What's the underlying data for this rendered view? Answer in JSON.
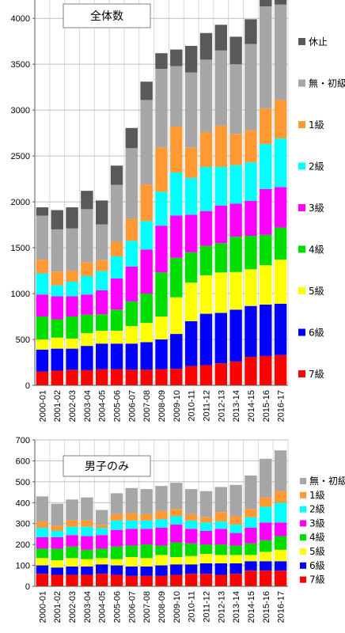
{
  "chart_data": [
    {
      "type": "bar",
      "stacked": true,
      "title": "全体数",
      "ylim": [
        0,
        4200
      ],
      "yticks": [
        0,
        500,
        1000,
        1500,
        2000,
        2500,
        3000,
        3500,
        4000
      ],
      "grid": true,
      "legend_position": "right",
      "categories": [
        "2000-01",
        "2001-02",
        "2002-03",
        "2003-04",
        "2004-05",
        "2005-06",
        "2006-07",
        "2007-08",
        "2008-09",
        "2009-10",
        "2010-11",
        "2011-12",
        "2012-13",
        "2013-14",
        "2014-15",
        "2015-16",
        "2016-17"
      ],
      "series": [
        {
          "name": "7級",
          "color": "#ff0000",
          "values": [
            150,
            160,
            170,
            165,
            175,
            175,
            170,
            170,
            175,
            180,
            210,
            220,
            240,
            260,
            310,
            320,
            330
          ]
        },
        {
          "name": "6級",
          "color": "#0000ff",
          "values": [
            240,
            240,
            230,
            265,
            280,
            280,
            285,
            300,
            325,
            380,
            490,
            560,
            550,
            565,
            555,
            560,
            560
          ]
        },
        {
          "name": "5級",
          "color": "#ffff00",
          "values": [
            110,
            120,
            110,
            140,
            140,
            140,
            190,
            210,
            250,
            400,
            420,
            420,
            440,
            410,
            400,
            430,
            480
          ]
        },
        {
          "name": "4級",
          "color": "#00dd00",
          "values": [
            250,
            200,
            240,
            200,
            180,
            230,
            270,
            320,
            480,
            430,
            330,
            320,
            320,
            385,
            365,
            330,
            350
          ]
        },
        {
          "name": "3級",
          "color": "#ff00ff",
          "values": [
            240,
            250,
            220,
            220,
            260,
            340,
            380,
            480,
            510,
            460,
            410,
            380,
            410,
            360,
            380,
            500,
            440
          ]
        },
        {
          "name": "2級",
          "color": "#00ffff",
          "values": [
            230,
            120,
            160,
            200,
            210,
            240,
            280,
            310,
            370,
            470,
            400,
            480,
            420,
            420,
            420,
            490,
            530
          ]
        },
        {
          "name": "1級",
          "color": "#ff9933",
          "values": [
            150,
            150,
            120,
            150,
            120,
            160,
            240,
            400,
            480,
            500,
            330,
            380,
            450,
            340,
            350,
            390,
            420
          ]
        },
        {
          "name": "無・初級",
          "color": "#a6a6a6",
          "values": [
            480,
            460,
            460,
            580,
            390,
            620,
            770,
            920,
            860,
            660,
            820,
            790,
            820,
            760,
            940,
            1110,
            1040
          ]
        },
        {
          "name": "休止",
          "color": "#595959",
          "values": [
            90,
            210,
            230,
            200,
            260,
            210,
            220,
            200,
            170,
            180,
            290,
            290,
            280,
            300,
            270,
            220,
            80
          ]
        }
      ]
    },
    {
      "type": "bar",
      "stacked": true,
      "title": "男子のみ",
      "ylim": [
        0,
        700
      ],
      "yticks": [
        0,
        100,
        200,
        300,
        400,
        500,
        600,
        700
      ],
      "grid": true,
      "legend_position": "right",
      "categories": [
        "2000-01",
        "2001-02",
        "2002-03",
        "2003-04",
        "2004-05",
        "2005-06",
        "2006-07",
        "2007-08",
        "2008-09",
        "2009-10",
        "2010-11",
        "2011-12",
        "2012-13",
        "2013-14",
        "2014-15",
        "2015-16",
        "2016-17"
      ],
      "series": [
        {
          "name": "7級",
          "color": "#ff0000",
          "values": [
            60,
            55,
            55,
            55,
            60,
            55,
            50,
            50,
            50,
            55,
            60,
            60,
            55,
            60,
            75,
            75,
            75
          ]
        },
        {
          "name": "6級",
          "color": "#0000ff",
          "values": [
            40,
            35,
            40,
            40,
            45,
            45,
            45,
            45,
            50,
            50,
            45,
            50,
            55,
            50,
            45,
            45,
            45
          ]
        },
        {
          "name": "5級",
          "color": "#ffff00",
          "values": [
            35,
            35,
            40,
            35,
            30,
            30,
            45,
            40,
            50,
            35,
            40,
            45,
            40,
            40,
            30,
            45,
            55
          ]
        },
        {
          "name": "4級",
          "color": "#00dd00",
          "values": [
            45,
            55,
            55,
            45,
            45,
            60,
            55,
            65,
            45,
            70,
            60,
            45,
            50,
            45,
            55,
            55,
            65
          ]
        },
        {
          "name": "3級",
          "color": "#ff00ff",
          "values": [
            55,
            55,
            55,
            65,
            65,
            80,
            80,
            75,
            85,
            85,
            70,
            65,
            75,
            60,
            75,
            85,
            65
          ]
        },
        {
          "name": "2級",
          "color": "#00ffff",
          "values": [
            45,
            30,
            40,
            45,
            35,
            45,
            40,
            40,
            40,
            40,
            40,
            40,
            35,
            40,
            50,
            75,
            95
          ]
        },
        {
          "name": "1級",
          "color": "#ff9933",
          "values": [
            30,
            25,
            30,
            30,
            15,
            30,
            35,
            30,
            40,
            35,
            30,
            25,
            45,
            40,
            40,
            45,
            55
          ]
        },
        {
          "name": "無・初級",
          "color": "#a6a6a6",
          "values": [
            120,
            105,
            100,
            110,
            70,
            100,
            120,
            120,
            120,
            125,
            120,
            125,
            120,
            150,
            160,
            185,
            195
          ]
        }
      ]
    }
  ]
}
